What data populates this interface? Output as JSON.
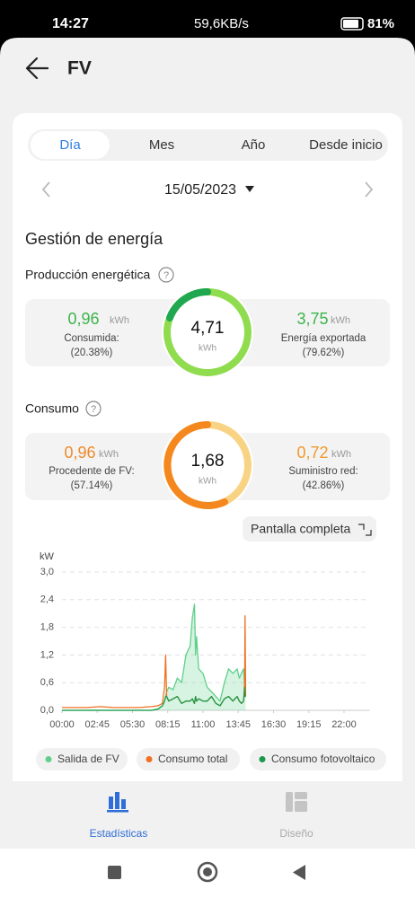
{
  "status_bar": {
    "time": "14:27",
    "speed": "59,6KB/s",
    "battery": "81%"
  },
  "header": {
    "title": "FV"
  },
  "tabs": [
    "Día",
    "Mes",
    "Año",
    "Desde inicio"
  ],
  "date": "15/05/2023",
  "section_title": "Gestión de energía",
  "production": {
    "title": "Producción energética",
    "left": {
      "value": "0,96",
      "unit": "kWh",
      "label": "Consumida:",
      "percent": "(20.38%)"
    },
    "center": {
      "value": "4,71",
      "unit": "kWh"
    },
    "right": {
      "value": "3,75",
      "unit": "kWh",
      "label": "Energía exportada",
      "percent": "(79.62%)"
    }
  },
  "consumption": {
    "title": "Consumo",
    "left": {
      "value": "0,96",
      "unit": "kWh",
      "label": "Procedente de FV:",
      "percent": "(57.14%)"
    },
    "center": {
      "value": "1,68",
      "unit": "kWh"
    },
    "right": {
      "value": "0,72",
      "unit": "kWh",
      "label": "Suministro red:",
      "percent": "(42.86%)"
    }
  },
  "fullscreen_button": "Pantalla completa",
  "chart_data": {
    "type": "line",
    "y_label": "kW",
    "x": [
      0,
      60,
      120,
      180,
      240,
      300,
      360,
      420,
      450,
      470,
      480,
      485,
      490,
      500,
      520,
      540,
      560,
      580,
      600,
      610,
      620,
      625,
      630,
      640,
      660,
      680,
      700,
      720,
      740,
      760,
      780,
      800,
      820,
      830,
      840,
      850,
      855,
      857,
      860
    ],
    "xlim": [
      0,
      1440
    ],
    "xticks": [
      {
        "value": 0,
        "label": "00:00"
      },
      {
        "value": 165,
        "label": "02:45"
      },
      {
        "value": 330,
        "label": "05:30"
      },
      {
        "value": 495,
        "label": "08:15"
      },
      {
        "value": 660,
        "label": "11:00"
      },
      {
        "value": 825,
        "label": "13:45"
      },
      {
        "value": 990,
        "label": "16:30"
      },
      {
        "value": 1155,
        "label": "19:15"
      },
      {
        "value": 1320,
        "label": "22:00"
      }
    ],
    "ylim": [
      0,
      3
    ],
    "yticks": [
      {
        "value": 0,
        "label": "0,0"
      },
      {
        "value": 0.6,
        "label": "0,6"
      },
      {
        "value": 1.2,
        "label": "1,2"
      },
      {
        "value": 1.8,
        "label": "1,8"
      },
      {
        "value": 2.4,
        "label": "2,4"
      },
      {
        "value": 3.0,
        "label": "3,0"
      }
    ],
    "grid": true,
    "series": [
      {
        "name": "Salida de FV",
        "color": "#5fd08a",
        "area": true,
        "values": [
          0,
          0,
          0,
          0,
          0,
          0,
          0,
          0,
          0.03,
          0.1,
          0.2,
          0.3,
          0.4,
          0.5,
          0.45,
          0.7,
          0.6,
          1.2,
          1.4,
          2.0,
          2.3,
          1.2,
          1.6,
          0.9,
          0.8,
          0.5,
          0.4,
          0.3,
          0.2,
          0.6,
          0.9,
          0.8,
          0.9,
          0.7,
          0.8,
          0.9,
          0.5,
          0.3,
          0.3
        ]
      },
      {
        "name": "Consumo total",
        "color": "#f07020",
        "values": [
          0.06,
          0.06,
          0.06,
          0.08,
          0.06,
          0.06,
          0.06,
          0.08,
          0.1,
          0.15,
          0.5,
          1.2,
          0.3,
          0.2,
          0.25,
          0.3,
          0.15,
          0.2,
          0.2,
          0.25,
          0.15,
          0.3,
          0.2,
          0.25,
          0.2,
          0.2,
          0.3,
          0.15,
          0.1,
          0.25,
          0.3,
          0.2,
          0.3,
          0.2,
          0.15,
          0.2,
          0.6,
          2.05,
          0.3
        ]
      },
      {
        "name": "Consumo fotovoltaico",
        "color": "#1a9a4a",
        "values": [
          0,
          0,
          0,
          0,
          0,
          0,
          0,
          0,
          0.03,
          0.1,
          0.2,
          0.3,
          0.3,
          0.2,
          0.25,
          0.3,
          0.15,
          0.2,
          0.2,
          0.25,
          0.15,
          0.3,
          0.2,
          0.25,
          0.2,
          0.2,
          0.3,
          0.15,
          0.1,
          0.25,
          0.3,
          0.2,
          0.3,
          0.2,
          0.15,
          0.2,
          0.5,
          0.3,
          0.3
        ]
      }
    ]
  },
  "bottom_nav": [
    "Estadísticas",
    "Diseño"
  ]
}
